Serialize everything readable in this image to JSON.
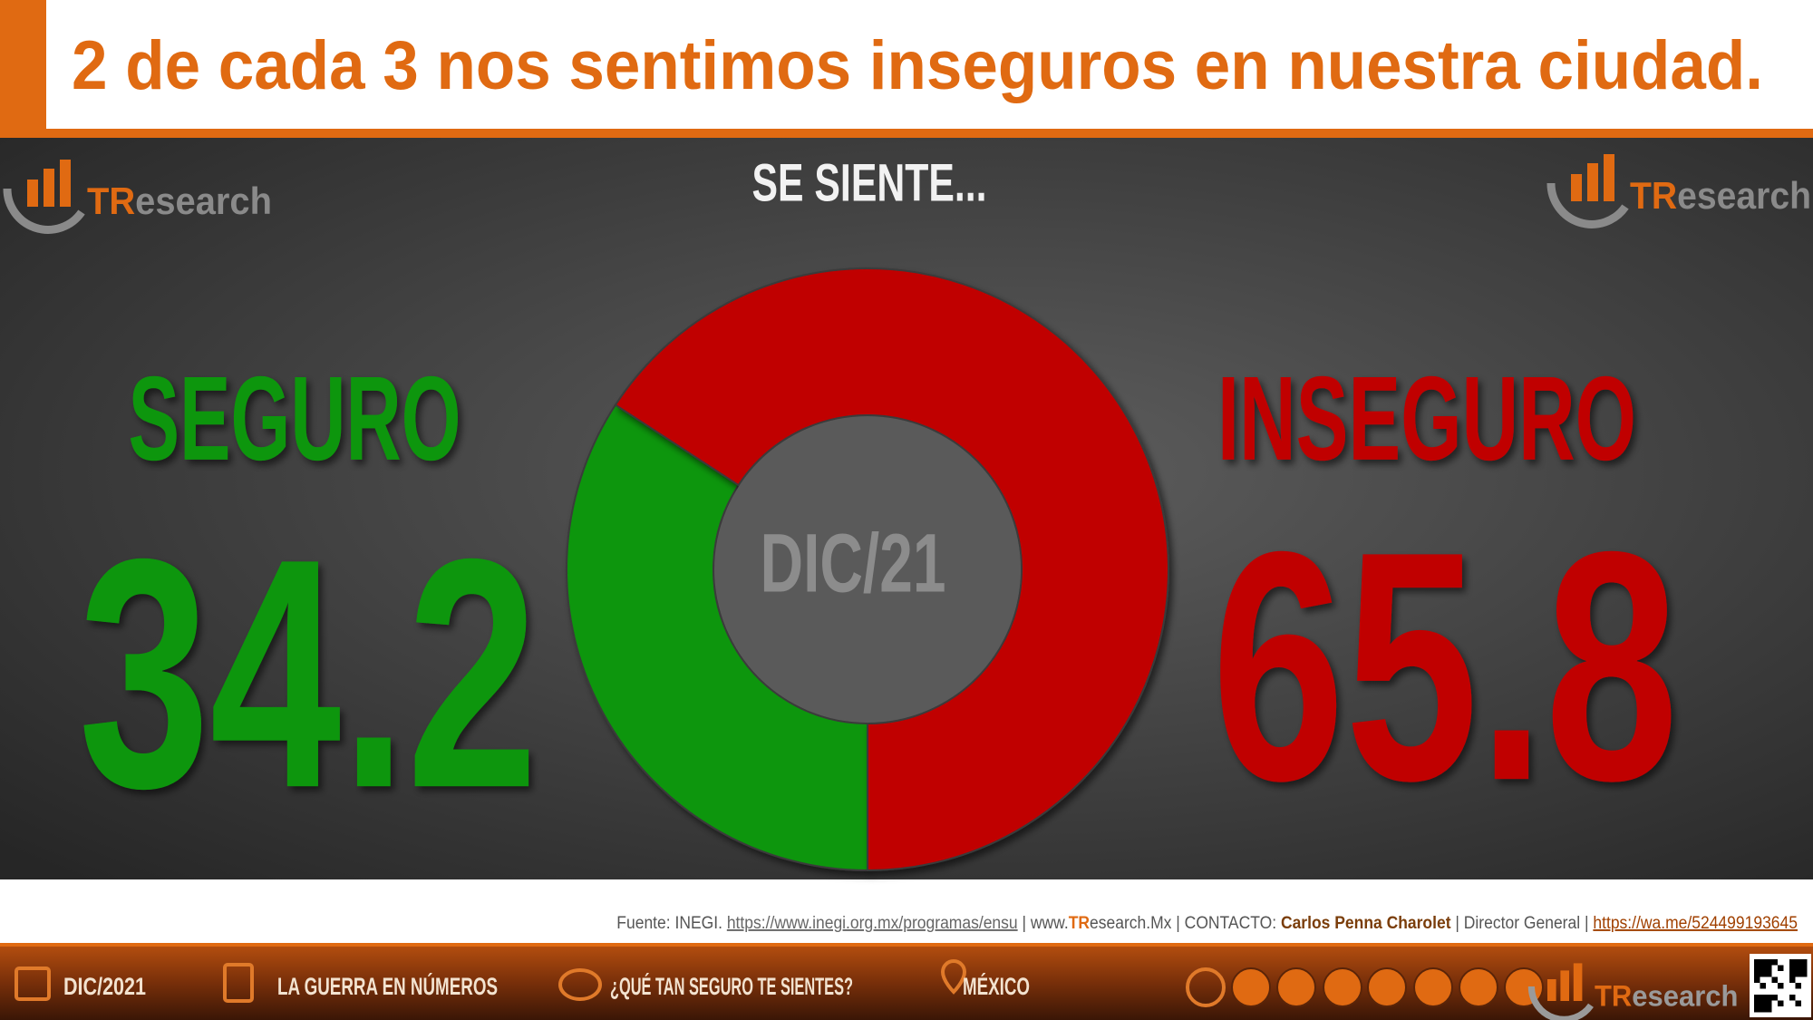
{
  "header": {
    "title": "2 de cada 3 nos sentimos inseguros en nuestra ciudad."
  },
  "logo": [
    "TR",
    "esearch"
  ],
  "chart_data": {
    "type": "pie",
    "subtitle": "SE SIENTE...",
    "center_label": "DIC/21",
    "categories": [
      "SEGURO",
      "INSEGURO"
    ],
    "values": [
      34.2,
      65.8
    ],
    "colors": [
      "#0e960e",
      "#c00000"
    ]
  },
  "source": [
    "Fuente: INEGI. ",
    "https://www.inegi.org.mx/programas/ensu",
    " | www.",
    "TR",
    "esearch.Mx | CONTACTO: ",
    "Carlos Penna Charolet",
    " | Director General | ",
    "https://wa.me/524499193645"
  ],
  "footer_bar": {
    "items": [
      "DIC/2021",
      "LA GUERRA EN NÚMEROS",
      "¿QUÉ TAN SEGURO TE SIENTES?",
      "MÉXICO"
    ]
  }
}
